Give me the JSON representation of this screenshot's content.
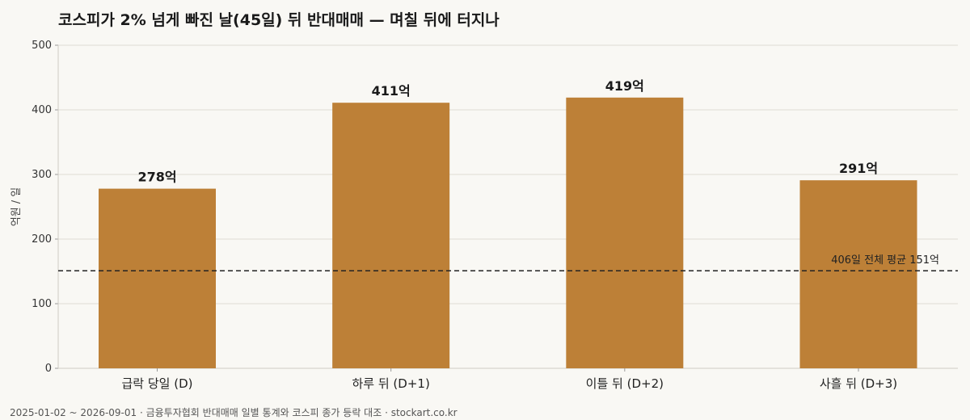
{
  "chart_data": {
    "type": "bar",
    "title": "코스피가 2% 넘게 빠진 날(45일) 뒤 반대매매 — 며칠 뒤에 터지나",
    "ylabel": "억원 / 일",
    "xlabel": "",
    "ylim": [
      0,
      500
    ],
    "yticks": [
      0,
      100,
      200,
      300,
      400,
      500
    ],
    "categories": [
      "급락 당일 (D)",
      "하루 뒤 (D+1)",
      "이틀 뒤 (D+2)",
      "사흘 뒤 (D+3)"
    ],
    "values": [
      278,
      411,
      419,
      291
    ],
    "data_labels": [
      "278억",
      "411억",
      "419억",
      "291억"
    ],
    "bar_color": "#bd8037",
    "grid": true,
    "reference_line": {
      "value": 151,
      "label": "406일 전체 평균 151억",
      "style": "dashed",
      "color": "#222222"
    }
  },
  "footer": {
    "source": "2025-01-02 ~ 2026-09-01 · 금융투자협회 반대매매 일별 통계와 코스피 종가 등락 대조 · stockart.co.kr"
  }
}
